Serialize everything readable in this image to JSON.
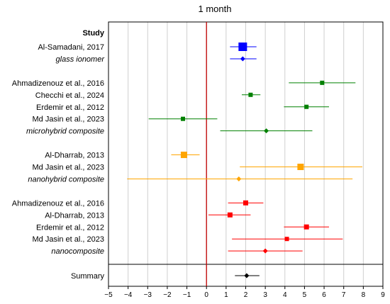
{
  "chart_data": {
    "type": "forest",
    "title": "1 month",
    "header": "Study",
    "x_ticks": [
      -5,
      -4,
      -3,
      -2,
      -1,
      0,
      1,
      2,
      3,
      4,
      5,
      6,
      7,
      8,
      9
    ],
    "xlim": [
      -5,
      9
    ],
    "reference_line": 0,
    "grid": "vertical",
    "colors": {
      "glass_ionomer": "#0000ff",
      "microhybrid": "#008000",
      "nanohybrid": "#ffa500",
      "nanocomposite": "#ff0000",
      "summary": "#000000",
      "reference": "#c00000"
    },
    "rows": [
      {
        "label": "Al-Samadani, 2017",
        "style": "normal",
        "color": "#0000ff",
        "marker": "square",
        "est": 1.85,
        "lo": 1.2,
        "hi": 2.55,
        "size": 12
      },
      {
        "label": "glass ionomer",
        "style": "italic",
        "color": "#0000ff",
        "marker": "diamond",
        "est": 1.85,
        "lo": 1.2,
        "hi": 2.55
      },
      {
        "label": "",
        "spacer": true
      },
      {
        "label": "Ahmadizenouz et al., 2016",
        "style": "normal",
        "color": "#008000",
        "marker": "square",
        "est": 5.9,
        "lo": 4.2,
        "hi": 7.6,
        "size": 6
      },
      {
        "label": "Checchi et al., 2024",
        "style": "normal",
        "color": "#008000",
        "marker": "square",
        "est": 2.25,
        "lo": 1.8,
        "hi": 2.75,
        "size": 6
      },
      {
        "label": "Erdemir et al., 2012",
        "style": "normal",
        "color": "#008000",
        "marker": "square",
        "est": 5.1,
        "lo": 3.95,
        "hi": 6.25,
        "size": 6
      },
      {
        "label": "Md Jasin et al., 2023",
        "style": "normal",
        "color": "#008000",
        "marker": "square",
        "est": -1.2,
        "lo": -2.95,
        "hi": 0.55,
        "size": 6
      },
      {
        "label": "microhybrid composite",
        "style": "italic",
        "color": "#008000",
        "marker": "diamond",
        "est": 3.05,
        "lo": 0.7,
        "hi": 5.4
      },
      {
        "label": "",
        "spacer": true
      },
      {
        "label": "Al-Dharrab, 2013",
        "style": "normal",
        "color": "#ffa500",
        "marker": "square",
        "est": -1.15,
        "lo": -1.8,
        "hi": -0.35,
        "size": 9
      },
      {
        "label": "Md Jasin et al., 2023",
        "style": "normal",
        "color": "#ffa500",
        "marker": "square",
        "est": 4.8,
        "lo": 1.7,
        "hi": 7.95,
        "size": 9
      },
      {
        "label": "nanohybrid composite",
        "style": "italic",
        "color": "#ffa500",
        "marker": "diamond",
        "est": 1.65,
        "lo": -4.05,
        "hi": 7.45
      },
      {
        "label": "",
        "spacer": true
      },
      {
        "label": "Ahmadizenouz et al., 2016",
        "style": "normal",
        "color": "#ff0000",
        "marker": "square",
        "est": 2.0,
        "lo": 1.1,
        "hi": 2.9,
        "size": 7
      },
      {
        "label": "Al-Dharrab, 2013",
        "style": "normal",
        "color": "#ff0000",
        "marker": "square",
        "est": 1.2,
        "lo": 0.1,
        "hi": 2.25,
        "size": 7
      },
      {
        "label": "Erdemir et al., 2012",
        "style": "normal",
        "color": "#ff0000",
        "marker": "square",
        "est": 5.1,
        "lo": 3.95,
        "hi": 6.25,
        "size": 7
      },
      {
        "label": "Md Jasin et al., 2023",
        "style": "normal",
        "color": "#ff0000",
        "marker": "square",
        "est": 4.1,
        "lo": 1.3,
        "hi": 6.95,
        "size": 6
      },
      {
        "label": "nanocomposite",
        "style": "italic",
        "color": "#ff0000",
        "marker": "diamond",
        "est": 3.0,
        "lo": 1.1,
        "hi": 4.9
      }
    ],
    "summary": {
      "label": "Summary",
      "color": "#000000",
      "marker": "diamond",
      "est": 2.05,
      "lo": 1.45,
      "hi": 2.7
    }
  }
}
